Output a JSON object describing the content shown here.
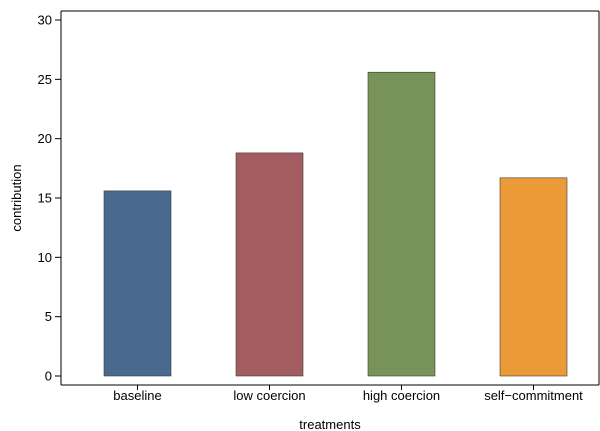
{
  "chart_data": {
    "type": "bar",
    "title": "",
    "xlabel": "treatments",
    "ylabel": "contribution",
    "categories": [
      "baseline",
      "low coercion",
      "high coercion",
      "self−commitment"
    ],
    "values": [
      15.6,
      18.8,
      25.6,
      16.7
    ],
    "colors": [
      "#486a8e",
      "#a35d60",
      "#789357",
      "#ea9a36"
    ],
    "ylim": [
      0,
      30
    ],
    "yticks": [
      0,
      5,
      10,
      15,
      20,
      25,
      30
    ],
    "grid": false,
    "legend": "none"
  }
}
